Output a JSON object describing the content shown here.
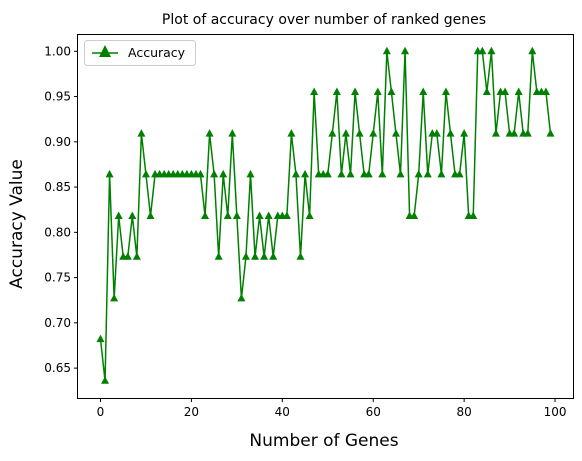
{
  "chart_data": {
    "type": "line",
    "title": "Plot of accuracy over number of ranked genes",
    "xlabel": "Number of Genes",
    "ylabel": "Accuracy Value",
    "xlim": [
      -4.95,
      103.95
    ],
    "ylim": [
      0.617,
      1.018
    ],
    "xticks": [
      0,
      20,
      40,
      60,
      80,
      100
    ],
    "xtick_labels": [
      "0",
      "20",
      "40",
      "60",
      "80",
      "100"
    ],
    "yticks": [
      0.65,
      0.7,
      0.75,
      0.8,
      0.85,
      0.9,
      0.95,
      1.0
    ],
    "ytick_labels": [
      "0.65",
      "0.70",
      "0.75",
      "0.80",
      "0.85",
      "0.90",
      "0.95",
      "1.00"
    ],
    "grid": false,
    "legend_position": "top-left",
    "series": [
      {
        "name": "Accuracy",
        "color": "#008000",
        "marker": "triangle-up",
        "x": [
          0,
          1,
          2,
          3,
          4,
          5,
          6,
          7,
          8,
          9,
          10,
          11,
          12,
          13,
          14,
          15,
          16,
          17,
          18,
          19,
          20,
          21,
          22,
          23,
          24,
          25,
          26,
          27,
          28,
          29,
          30,
          31,
          32,
          33,
          34,
          35,
          36,
          37,
          38,
          39,
          40,
          41,
          42,
          43,
          44,
          45,
          46,
          47,
          48,
          49,
          50,
          51,
          52,
          53,
          54,
          55,
          56,
          57,
          58,
          59,
          60,
          61,
          62,
          63,
          64,
          65,
          66,
          67,
          68,
          69,
          70,
          71,
          72,
          73,
          74,
          75,
          76,
          77,
          78,
          79,
          80,
          81,
          82,
          83,
          84,
          85,
          86,
          87,
          88,
          89,
          90,
          91,
          92,
          93,
          94,
          95,
          96,
          97,
          98,
          99
        ],
        "values": [
          0.682,
          0.636,
          0.864,
          0.727,
          0.818,
          0.773,
          0.773,
          0.818,
          0.773,
          0.909,
          0.864,
          0.818,
          0.864,
          0.864,
          0.864,
          0.864,
          0.864,
          0.864,
          0.864,
          0.864,
          0.864,
          0.864,
          0.864,
          0.818,
          0.909,
          0.864,
          0.773,
          0.864,
          0.818,
          0.909,
          0.818,
          0.727,
          0.773,
          0.864,
          0.773,
          0.818,
          0.773,
          0.818,
          0.773,
          0.818,
          0.818,
          0.818,
          0.909,
          0.864,
          0.773,
          0.864,
          0.818,
          0.955,
          0.864,
          0.864,
          0.864,
          0.909,
          0.955,
          0.864,
          0.909,
          0.864,
          0.955,
          0.909,
          0.864,
          0.864,
          0.909,
          0.955,
          0.864,
          1.0,
          0.955,
          0.909,
          0.864,
          1.0,
          0.818,
          0.818,
          0.864,
          0.955,
          0.864,
          0.909,
          0.909,
          0.864,
          0.955,
          0.909,
          0.864,
          0.864,
          0.909,
          0.818,
          0.818,
          1.0,
          1.0,
          0.955,
          1.0,
          0.909,
          0.955,
          0.955,
          0.909,
          0.909,
          0.955,
          0.909,
          0.909,
          1.0,
          0.955,
          0.955,
          0.955,
          0.909
        ]
      }
    ]
  }
}
